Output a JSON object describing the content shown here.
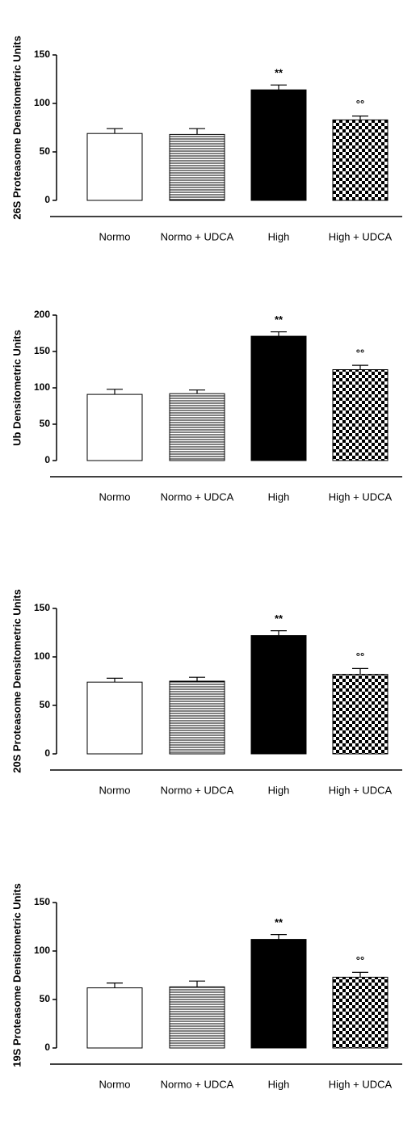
{
  "chart_data": [
    {
      "type": "bar",
      "y_label": "26S Proteasome Densitometric Units",
      "categories": [
        "Normo",
        "Normo + UDCA",
        "High",
        "High + UDCA"
      ],
      "values": [
        69,
        68,
        114,
        83
      ],
      "errors": [
        5,
        6,
        5,
        4
      ],
      "annotations": [
        null,
        null,
        "**",
        "°°"
      ],
      "fills": [
        "white",
        "stripes",
        "black",
        "checker"
      ],
      "ylim": [
        0,
        150
      ],
      "yticks": [
        0,
        50,
        100,
        150
      ]
    },
    {
      "type": "bar",
      "y_label": "Ub Densitometric Units",
      "categories": [
        "Normo",
        "Normo + UDCA",
        "High",
        "High + UDCA"
      ],
      "values": [
        91,
        92,
        171,
        125
      ],
      "errors": [
        7,
        5,
        6,
        6
      ],
      "annotations": [
        null,
        null,
        "**",
        "°°"
      ],
      "fills": [
        "white",
        "stripes",
        "black",
        "checker"
      ],
      "ylim": [
        0,
        200
      ],
      "yticks": [
        0,
        50,
        100,
        150,
        200
      ]
    },
    {
      "type": "bar",
      "y_label": "20S Proteasome Densitometric Units",
      "categories": [
        "Normo",
        "Normo + UDCA",
        "High",
        "High + UDCA"
      ],
      "values": [
        74,
        75,
        122,
        82
      ],
      "errors": [
        4,
        4,
        5,
        6
      ],
      "annotations": [
        null,
        null,
        "**",
        "°°"
      ],
      "fills": [
        "white",
        "stripes",
        "black",
        "checker"
      ],
      "ylim": [
        0,
        150
      ],
      "yticks": [
        0,
        50,
        100,
        150
      ]
    },
    {
      "type": "bar",
      "y_label": "19S Proteasome Densitometric Units",
      "categories": [
        "Normo",
        "Normo + UDCA",
        "High",
        "High + UDCA"
      ],
      "values": [
        62,
        63,
        112,
        73
      ],
      "errors": [
        5,
        6,
        5,
        5
      ],
      "annotations": [
        null,
        null,
        "**",
        "°°"
      ],
      "fills": [
        "white",
        "stripes",
        "black",
        "checker"
      ],
      "ylim": [
        0,
        150
      ],
      "yticks": [
        0,
        50,
        100,
        150
      ]
    }
  ]
}
